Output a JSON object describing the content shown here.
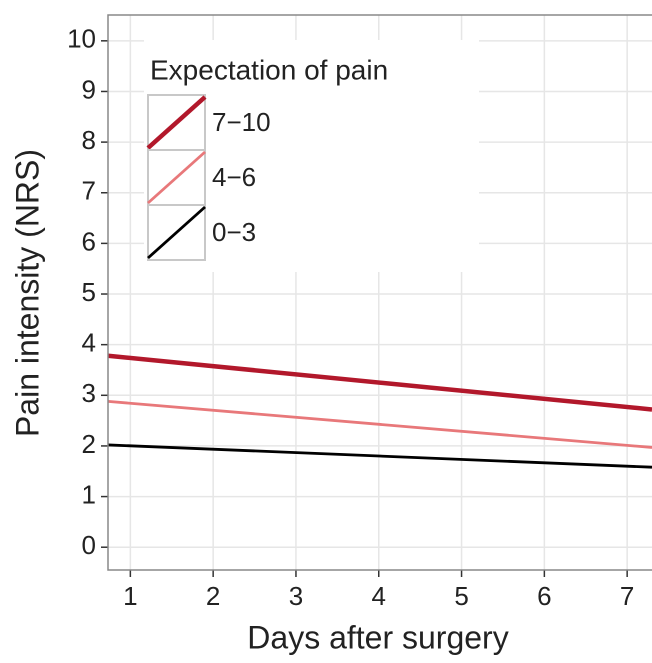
{
  "chart_data": {
    "type": "line",
    "x_label": "Days after surgery",
    "y_label": "Pain intensity (NRS)",
    "x": [
      0.73,
      7.3
    ],
    "series": [
      {
        "name": "7−10",
        "color": "#b2182b",
        "width": 4.5,
        "values": [
          3.78,
          2.72
        ]
      },
      {
        "name": "4−6",
        "color": "#e8787a",
        "width": 2.8,
        "values": [
          2.88,
          1.97
        ]
      },
      {
        "name": "0−3",
        "color": "#000000",
        "width": 2.8,
        "values": [
          2.02,
          1.58
        ]
      }
    ],
    "legend_title": "Expectation of pain",
    "legend": "top-left",
    "xlim": [
      0.73,
      7.3
    ],
    "xticks": [
      1,
      2,
      3,
      4,
      5,
      6,
      7
    ],
    "ylim": [
      -0.45,
      10.51
    ],
    "yticks": [
      0,
      1,
      2,
      3,
      4,
      5,
      6,
      7,
      8,
      9,
      10
    ],
    "grid": true
  }
}
